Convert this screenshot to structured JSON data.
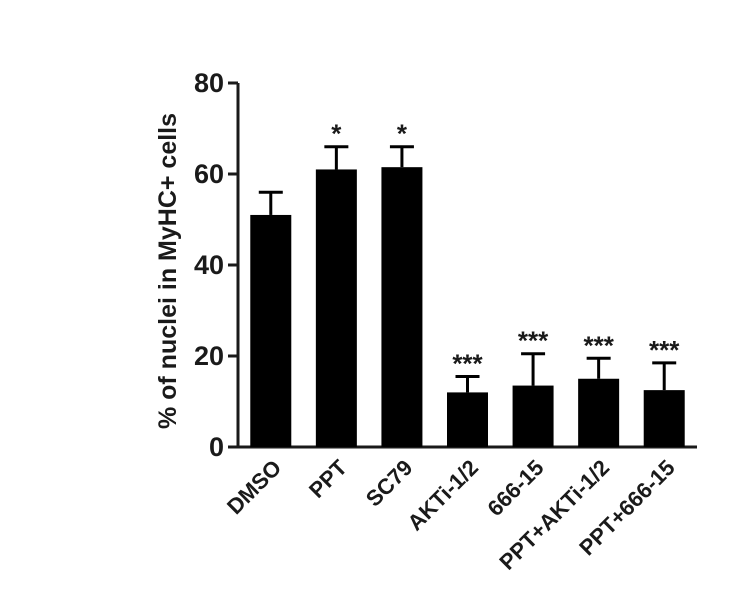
{
  "chart_data": {
    "type": "bar",
    "title": "",
    "xlabel": "",
    "ylabel": "% of nuclei in MyHC+ cells",
    "ylim": [
      0,
      80
    ],
    "yticks": [
      0,
      20,
      40,
      60,
      80
    ],
    "grid": false,
    "legend": "none",
    "bar_color": "#000000",
    "categories": [
      "DMSO",
      "PPT",
      "SC79",
      "AKTi-1/2",
      "666-15",
      "PPT+AKTi-1/2",
      "PPT+666-15"
    ],
    "values": [
      51,
      61,
      61.5,
      12,
      13.5,
      15,
      12.5
    ],
    "error_upper": [
      5,
      5,
      4.5,
      3.5,
      7,
      4.5,
      6
    ],
    "significance": [
      "",
      "*",
      "*",
      "***",
      "***",
      "***",
      "***"
    ]
  }
}
